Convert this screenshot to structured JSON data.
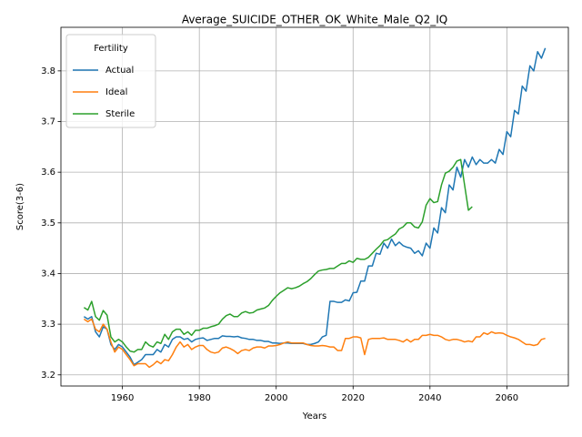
{
  "chart_data": {
    "type": "line",
    "title": "Average_SUICIDE_OTHER_OK_White_Male_Q2_IQ",
    "xlabel": "Years",
    "ylabel": "Score(3-6)",
    "legend_title": "Fertility",
    "legend": "upper left",
    "grid": true,
    "xlim": [
      1944,
      2076
    ],
    "ylim": [
      3.178,
      3.886
    ],
    "xticks": [
      1960,
      1980,
      2000,
      2020,
      2040,
      2060
    ],
    "yticks": [
      3.2,
      3.3,
      3.4,
      3.5,
      3.6,
      3.7,
      3.8
    ],
    "x": [
      1950,
      1951,
      1952,
      1953,
      1954,
      1955,
      1956,
      1957,
      1958,
      1959,
      1960,
      1961,
      1962,
      1963,
      1964,
      1965,
      1966,
      1967,
      1968,
      1969,
      1970,
      1971,
      1972,
      1973,
      1974,
      1975,
      1976,
      1977,
      1978,
      1979,
      1980,
      1981,
      1982,
      1983,
      1984,
      1985,
      1986,
      1987,
      1988,
      1989,
      1990,
      1991,
      1992,
      1993,
      1994,
      1995,
      1996,
      1997,
      1998,
      1999,
      2000,
      2001,
      2002,
      2003,
      2004,
      2005,
      2006,
      2007,
      2008,
      2009,
      2010,
      2011,
      2012,
      2013,
      2014,
      2015,
      2016,
      2017,
      2018,
      2019,
      2020,
      2021,
      2022,
      2023,
      2024,
      2025,
      2026,
      2027,
      2028,
      2029,
      2030,
      2031,
      2032,
      2033,
      2034,
      2035,
      2036,
      2037,
      2038,
      2039,
      2040,
      2041,
      2042,
      2043,
      2044,
      2045,
      2046,
      2047,
      2048,
      2049,
      2050,
      2051,
      2052,
      2053,
      2054,
      2055,
      2056,
      2057,
      2058,
      2059,
      2060,
      2061,
      2062,
      2063,
      2064,
      2065,
      2066,
      2067,
      2068,
      2069,
      2070
    ],
    "series": [
      {
        "name": "Actual",
        "color": "#1f77b4",
        "values": [
          3.315,
          3.31,
          3.315,
          3.285,
          3.275,
          3.295,
          3.29,
          3.26,
          3.25,
          3.26,
          3.255,
          3.245,
          3.235,
          3.22,
          3.225,
          3.23,
          3.24,
          3.24,
          3.24,
          3.25,
          3.245,
          3.26,
          3.255,
          3.27,
          3.275,
          3.275,
          3.27,
          3.272,
          3.265,
          3.27,
          3.272,
          3.273,
          3.268,
          3.27,
          3.272,
          3.272,
          3.277,
          3.276,
          3.276,
          3.275,
          3.276,
          3.273,
          3.272,
          3.27,
          3.27,
          3.268,
          3.268,
          3.266,
          3.266,
          3.263,
          3.263,
          3.262,
          3.263,
          3.263,
          3.262,
          3.262,
          3.262,
          3.262,
          3.26,
          3.26,
          3.262,
          3.265,
          3.275,
          3.278,
          3.345,
          3.345,
          3.343,
          3.343,
          3.348,
          3.346,
          3.362,
          3.363,
          3.385,
          3.385,
          3.415,
          3.415,
          3.44,
          3.438,
          3.46,
          3.45,
          3.468,
          3.455,
          3.462,
          3.455,
          3.452,
          3.45,
          3.44,
          3.445,
          3.435,
          3.46,
          3.45,
          3.49,
          3.48,
          3.53,
          3.52,
          3.575,
          3.565,
          3.61,
          3.59,
          3.625,
          3.61,
          3.63,
          3.615,
          3.625,
          3.618,
          3.618,
          3.625,
          3.618,
          3.645,
          3.635,
          3.68,
          3.67,
          3.722,
          3.715,
          3.77,
          3.76,
          3.81,
          3.8,
          3.838,
          3.825,
          3.845
        ]
      },
      {
        "name": "Ideal",
        "color": "#ff7f0e",
        "values": [
          3.31,
          3.305,
          3.31,
          3.29,
          3.285,
          3.3,
          3.29,
          3.265,
          3.245,
          3.255,
          3.25,
          3.24,
          3.23,
          3.218,
          3.222,
          3.222,
          3.222,
          3.215,
          3.22,
          3.227,
          3.222,
          3.23,
          3.228,
          3.24,
          3.255,
          3.265,
          3.255,
          3.26,
          3.25,
          3.255,
          3.258,
          3.258,
          3.25,
          3.245,
          3.243,
          3.245,
          3.253,
          3.255,
          3.252,
          3.248,
          3.242,
          3.248,
          3.25,
          3.248,
          3.253,
          3.255,
          3.255,
          3.253,
          3.257,
          3.257,
          3.258,
          3.26,
          3.263,
          3.265,
          3.263,
          3.263,
          3.263,
          3.263,
          3.26,
          3.258,
          3.257,
          3.257,
          3.258,
          3.257,
          3.255,
          3.255,
          3.248,
          3.248,
          3.272,
          3.272,
          3.275,
          3.275,
          3.273,
          3.24,
          3.27,
          3.272,
          3.272,
          3.272,
          3.273,
          3.27,
          3.27,
          3.27,
          3.268,
          3.265,
          3.27,
          3.265,
          3.27,
          3.27,
          3.278,
          3.278,
          3.28,
          3.278,
          3.278,
          3.275,
          3.27,
          3.268,
          3.27,
          3.27,
          3.268,
          3.265,
          3.267,
          3.265,
          3.275,
          3.275,
          3.283,
          3.28,
          3.285,
          3.282,
          3.283,
          3.282,
          3.278,
          3.275,
          3.273,
          3.27,
          3.265,
          3.26,
          3.26,
          3.258,
          3.26,
          3.27,
          3.272
        ]
      },
      {
        "name": "Sterile",
        "color": "#2ca02c",
        "values": [
          3.333,
          3.328,
          3.345,
          3.315,
          3.308,
          3.327,
          3.318,
          3.275,
          3.265,
          3.27,
          3.265,
          3.255,
          3.247,
          3.245,
          3.25,
          3.25,
          3.265,
          3.258,
          3.255,
          3.265,
          3.262,
          3.28,
          3.27,
          3.285,
          3.29,
          3.29,
          3.28,
          3.285,
          3.278,
          3.288,
          3.288,
          3.292,
          3.292,
          3.295,
          3.297,
          3.3,
          3.31,
          3.317,
          3.32,
          3.315,
          3.315,
          3.322,
          3.325,
          3.322,
          3.323,
          3.328,
          3.33,
          3.332,
          3.337,
          3.347,
          3.355,
          3.362,
          3.367,
          3.372,
          3.37,
          3.372,
          3.375,
          3.38,
          3.384,
          3.39,
          3.398,
          3.405,
          3.407,
          3.408,
          3.41,
          3.41,
          3.415,
          3.42,
          3.42,
          3.425,
          3.422,
          3.43,
          3.428,
          3.428,
          3.432,
          3.44,
          3.448,
          3.455,
          3.465,
          3.467,
          3.473,
          3.478,
          3.488,
          3.492,
          3.5,
          3.5,
          3.492,
          3.49,
          3.502,
          3.535,
          3.548,
          3.54,
          3.542,
          3.575,
          3.598,
          3.602,
          3.61,
          3.622,
          3.625,
          3.575,
          3.525,
          3.532,
          null,
          null,
          null,
          null,
          null,
          null,
          null,
          null,
          null,
          null,
          null,
          null,
          null,
          null,
          null,
          null,
          null,
          null,
          null
        ]
      }
    ]
  }
}
